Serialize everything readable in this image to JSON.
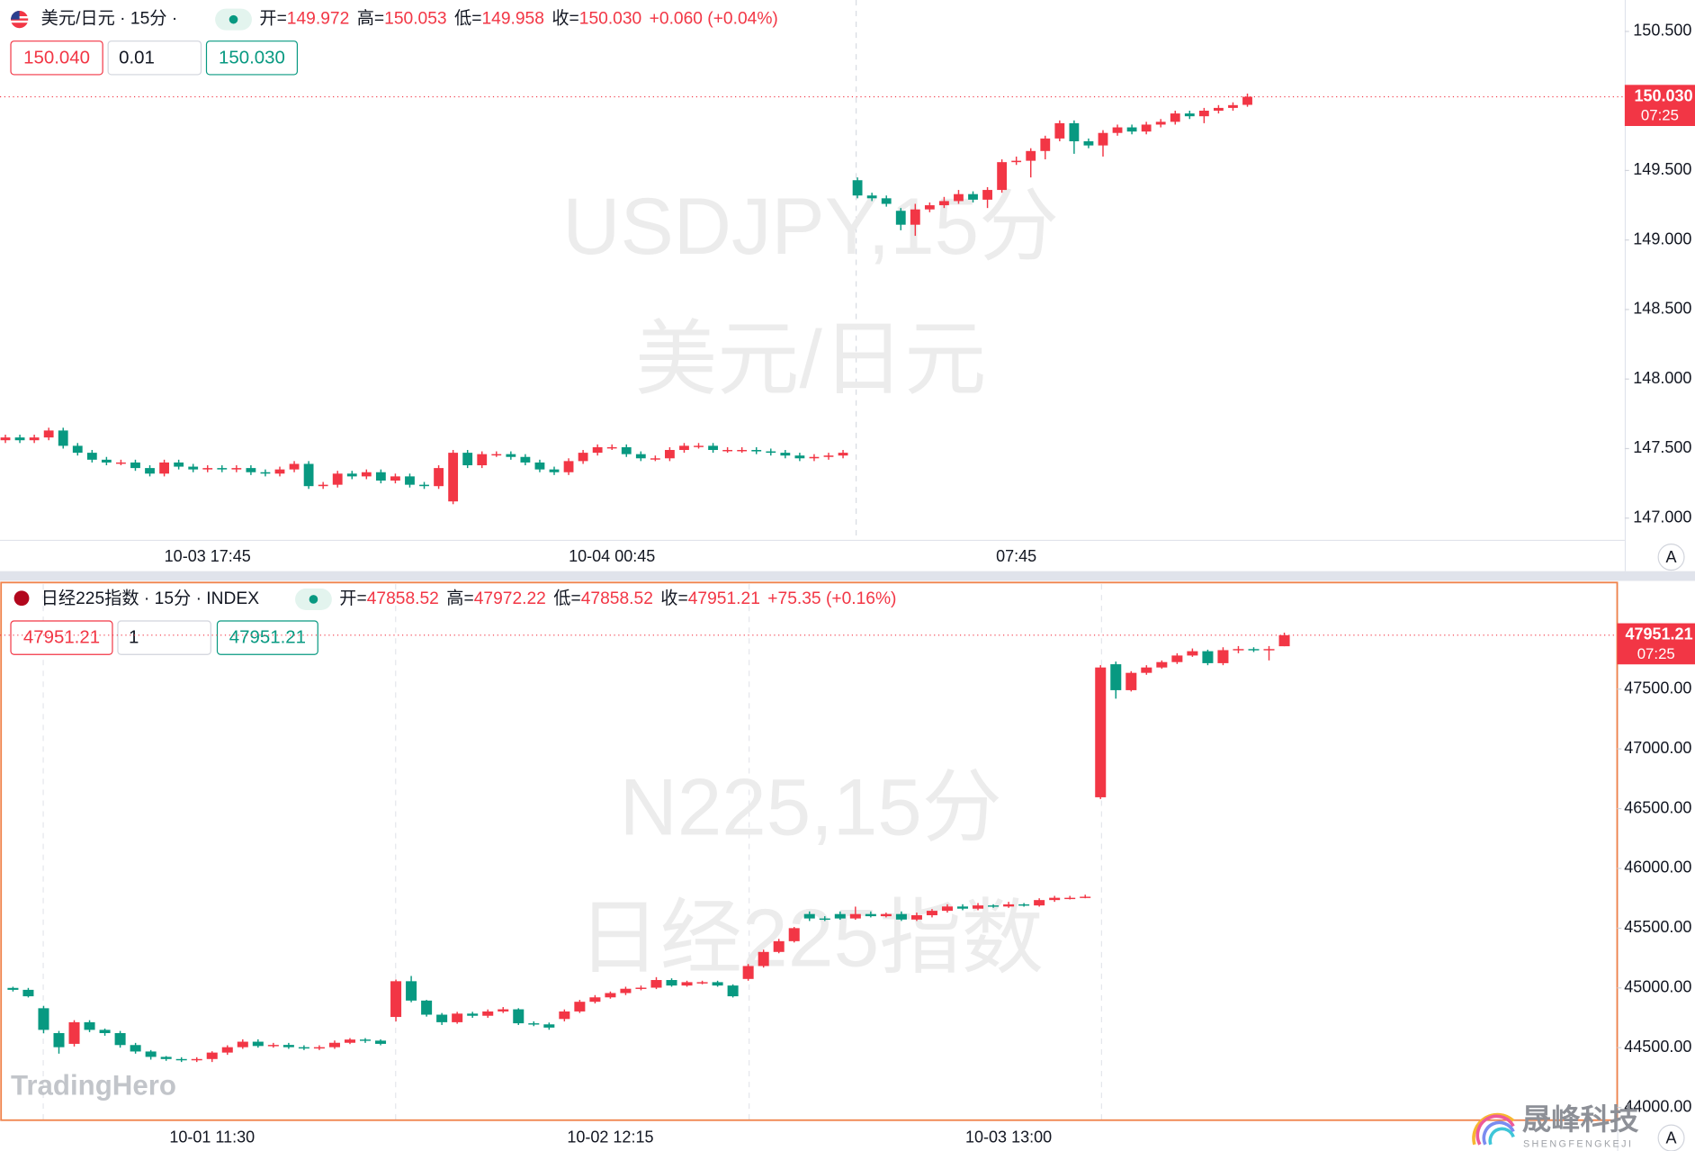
{
  "chart_data": [
    {
      "type": "candlestick",
      "symbol": "美元/日元 · 15分 ·",
      "ohlc_labels": [
        "开=",
        "高=",
        "低=",
        "收="
      ],
      "ohlc_values": [
        "149.972",
        "150.053",
        "149.958",
        "150.030"
      ],
      "change": "+0.060 (+0.04%)",
      "order_boxes": [
        "150.040",
        "0.01",
        "150.030"
      ],
      "watermark": [
        "USDJPY,15分",
        "美元/日元"
      ],
      "up_color": "#f23645",
      "down_color": "#089981",
      "last_price": {
        "value": 150.03,
        "label": "150.030"
      },
      "last_time": "07:25",
      "ylim": [
        146.844,
        150.726
      ],
      "yticks": [
        {
          "value": 150.5,
          "label": "150.500"
        },
        {
          "value": 149.5,
          "label": "149.500"
        },
        {
          "value": 149,
          "label": "149.000"
        },
        {
          "value": 148.5,
          "label": "148.500"
        },
        {
          "value": 148,
          "label": "148.000"
        },
        {
          "value": 147.5,
          "label": "147.500"
        },
        {
          "value": 147,
          "label": "147.000"
        }
      ],
      "categories": [
        null,
        null,
        null,
        null,
        null,
        null,
        null,
        null,
        null,
        null,
        null,
        null,
        null,
        null,
        "10-03 17:45",
        null,
        null,
        null,
        null,
        null,
        null,
        null,
        null,
        null,
        null,
        null,
        null,
        null,
        null,
        null,
        null,
        null,
        null,
        null,
        null,
        null,
        null,
        null,
        null,
        null,
        null,
        null,
        "10-04 00:45",
        null,
        null,
        null,
        null,
        null,
        null,
        null,
        null,
        null,
        null,
        null,
        null,
        null,
        null,
        null,
        null,
        null,
        null,
        null,
        null,
        null,
        null,
        null,
        null,
        null,
        null,
        null,
        "07:45",
        null,
        null,
        null,
        null,
        null,
        null,
        null,
        null,
        null,
        null,
        null,
        null,
        null,
        null,
        null,
        null
      ],
      "open": [
        147.56,
        147.58,
        147.56,
        147.58,
        147.63,
        147.52,
        147.47,
        147.42,
        147.4,
        147.4,
        147.36,
        147.32,
        147.4,
        147.37,
        147.35,
        147.36,
        147.35,
        147.36,
        147.33,
        147.32,
        147.35,
        147.39,
        147.23,
        147.24,
        147.32,
        147.3,
        147.33,
        147.27,
        147.3,
        147.24,
        147.23,
        147.12,
        147.47,
        147.38,
        147.46,
        147.46,
        147.44,
        147.4,
        147.35,
        147.33,
        147.41,
        147.47,
        147.51,
        147.51,
        147.46,
        147.43,
        147.43,
        147.49,
        147.52,
        147.52,
        147.49,
        147.49,
        147.49,
        147.48,
        147.47,
        147.45,
        147.43,
        147.44,
        147.45,
        149.43,
        149.32,
        149.3,
        149.21,
        149.11,
        149.22,
        149.25,
        149.28,
        149.33,
        149.29,
        149.36,
        149.56,
        149.57,
        149.64,
        149.73,
        149.84,
        149.71,
        149.68,
        149.77,
        149.81,
        149.78,
        149.83,
        149.85,
        149.91,
        149.89,
        149.93,
        149.95,
        149.972
      ],
      "high": [
        147.6,
        147.6,
        147.6,
        147.65,
        147.65,
        147.54,
        147.49,
        147.44,
        147.42,
        147.42,
        147.38,
        147.42,
        147.42,
        147.39,
        147.38,
        147.38,
        147.38,
        147.38,
        147.35,
        147.37,
        147.41,
        147.41,
        147.26,
        147.34,
        147.34,
        147.35,
        147.35,
        147.32,
        147.32,
        147.26,
        147.38,
        147.49,
        147.49,
        147.48,
        147.48,
        147.48,
        147.46,
        147.42,
        147.37,
        147.43,
        147.49,
        147.53,
        147.53,
        147.53,
        147.48,
        147.45,
        147.51,
        147.54,
        147.54,
        147.54,
        147.51,
        147.51,
        147.51,
        147.5,
        147.49,
        147.47,
        147.46,
        147.47,
        147.49,
        149.45,
        149.34,
        149.32,
        149.23,
        149.26,
        149.27,
        149.31,
        149.36,
        149.35,
        149.38,
        149.58,
        149.6,
        149.66,
        149.75,
        149.86,
        149.86,
        149.73,
        149.79,
        149.83,
        149.83,
        149.85,
        149.87,
        149.93,
        149.93,
        149.95,
        149.97,
        149.99,
        150.053
      ],
      "low": [
        147.54,
        147.54,
        147.54,
        147.56,
        147.5,
        147.45,
        147.4,
        147.38,
        147.38,
        147.34,
        147.3,
        147.3,
        147.35,
        147.33,
        147.33,
        147.33,
        147.33,
        147.31,
        147.3,
        147.3,
        147.33,
        147.21,
        147.21,
        147.22,
        147.28,
        147.28,
        147.25,
        147.25,
        147.22,
        147.21,
        147.21,
        147.1,
        147.36,
        147.36,
        147.44,
        147.42,
        147.38,
        147.33,
        147.31,
        147.31,
        147.39,
        147.45,
        147.49,
        147.44,
        147.41,
        147.41,
        147.41,
        147.47,
        147.5,
        147.47,
        147.47,
        147.47,
        147.46,
        147.45,
        147.43,
        147.41,
        147.41,
        147.42,
        147.43,
        149.3,
        149.28,
        149.24,
        149.07,
        149.03,
        149.2,
        149.23,
        149.26,
        149.27,
        149.23,
        149.34,
        149.54,
        149.45,
        149.58,
        149.71,
        149.62,
        149.66,
        149.6,
        149.75,
        149.76,
        149.76,
        149.81,
        149.83,
        149.87,
        149.84,
        149.91,
        149.93,
        149.958
      ],
      "close": [
        147.58,
        147.56,
        147.58,
        147.63,
        147.52,
        147.47,
        147.42,
        147.4,
        147.4,
        147.36,
        147.32,
        147.4,
        147.37,
        147.35,
        147.36,
        147.35,
        147.36,
        147.33,
        147.32,
        147.35,
        147.39,
        147.23,
        147.24,
        147.32,
        147.3,
        147.33,
        147.27,
        147.3,
        147.24,
        147.23,
        147.36,
        147.47,
        147.38,
        147.46,
        147.46,
        147.44,
        147.4,
        147.35,
        147.33,
        147.41,
        147.47,
        147.51,
        147.51,
        147.46,
        147.43,
        147.43,
        147.49,
        147.52,
        147.52,
        147.49,
        147.49,
        147.49,
        147.48,
        147.47,
        147.45,
        147.43,
        147.44,
        147.45,
        147.47,
        149.32,
        149.3,
        149.26,
        149.11,
        149.22,
        149.25,
        149.28,
        149.33,
        149.29,
        149.36,
        149.56,
        149.57,
        149.64,
        149.73,
        149.84,
        149.71,
        149.68,
        149.77,
        149.81,
        149.78,
        149.83,
        149.85,
        149.91,
        149.89,
        149.93,
        149.95,
        149.97,
        150.03
      ]
    },
    {
      "type": "candlestick",
      "symbol": "日经225指数 · 15分 · INDEX",
      "ohlc_labels": [
        "开=",
        "高=",
        "低=",
        "收="
      ],
      "ohlc_values": [
        "47858.52",
        "47972.22",
        "47858.52",
        "47951.21"
      ],
      "change": "+75.35 (+0.16%)",
      "order_boxes": [
        "47951.21",
        "1",
        "47951.21"
      ],
      "watermark": [
        "N225,15分",
        "日经225指数"
      ],
      "up_color": "#f23645",
      "down_color": "#089981",
      "last_price": {
        "value": 47951.21,
        "label": "47951.21"
      },
      "last_time": "07:25",
      "ylim": [
        43898,
        48378
      ],
      "yticks": [
        {
          "value": 47500,
          "label": "47500.00"
        },
        {
          "value": 47000,
          "label": "47000.00"
        },
        {
          "value": 46500,
          "label": "46500.00"
        },
        {
          "value": 46000,
          "label": "46000.00"
        },
        {
          "value": 45500,
          "label": "45500.00"
        },
        {
          "value": 45000,
          "label": "45000.00"
        },
        {
          "value": 44500,
          "label": "44500.00"
        },
        {
          "value": 44000,
          "label": "44000.00"
        }
      ],
      "categories": [
        null,
        null,
        null,
        null,
        null,
        null,
        null,
        null,
        null,
        null,
        null,
        null,
        null,
        "10-01 11:30",
        null,
        null,
        null,
        null,
        null,
        null,
        null,
        null,
        null,
        null,
        null,
        null,
        null,
        null,
        null,
        null,
        null,
        null,
        null,
        null,
        null,
        null,
        null,
        null,
        null,
        "10-02 12:15",
        null,
        null,
        null,
        null,
        null,
        null,
        null,
        null,
        null,
        null,
        null,
        null,
        null,
        null,
        null,
        null,
        null,
        null,
        null,
        null,
        null,
        null,
        null,
        null,
        null,
        "10-03 13:00",
        null,
        null,
        null,
        null,
        null,
        null,
        null,
        null,
        null,
        null,
        null,
        null,
        null,
        null,
        null,
        null,
        null,
        null
      ],
      "open": [
        45000,
        44984,
        44830,
        44622,
        44532,
        44713,
        44649,
        44622,
        44522,
        44468,
        44423,
        44405,
        44396,
        44405,
        44459,
        44504,
        44550,
        44514,
        44523,
        44504,
        44495,
        44504,
        44541,
        44568,
        44559,
        44757,
        45056,
        44894,
        44776,
        44713,
        44785,
        44767,
        44803,
        44821,
        44704,
        44695,
        44740,
        44803,
        44884,
        44921,
        44957,
        44993,
        45002,
        45066,
        45020,
        45048,
        45048,
        45020,
        45075,
        45183,
        45301,
        45391,
        45618,
        45581,
        45618,
        45581,
        45618,
        45600,
        45618,
        45572,
        45608,
        45645,
        45681,
        45663,
        45690,
        45681,
        45699,
        45690,
        45735,
        45754,
        45754,
        46595,
        47708,
        47491,
        47636,
        47681,
        47726,
        47781,
        47817,
        47717,
        47826,
        47835,
        47826,
        47858.52
      ],
      "high": [
        45010,
        45000,
        44850,
        44640,
        44730,
        44730,
        44660,
        44640,
        44540,
        44480,
        44430,
        44420,
        44420,
        44470,
        44520,
        44570,
        44570,
        44540,
        44540,
        44520,
        44520,
        44560,
        44580,
        44580,
        44570,
        45070,
        45100,
        44900,
        44790,
        44800,
        44800,
        44820,
        44840,
        44830,
        44720,
        44710,
        44820,
        44900,
        44940,
        44970,
        45010,
        45020,
        45090,
        45080,
        45060,
        45060,
        45060,
        45030,
        45200,
        45320,
        45410,
        45510,
        45640,
        45600,
        45640,
        45680,
        45640,
        45630,
        45640,
        45630,
        45660,
        45700,
        45700,
        45710,
        45700,
        45720,
        45710,
        45750,
        45770,
        45770,
        45780,
        47700,
        47730,
        47650,
        47700,
        47740,
        47800,
        47840,
        47830,
        47850,
        47860,
        47850,
        47860,
        47972.22
      ],
      "low": [
        44970,
        44920,
        44620,
        44450,
        44510,
        44630,
        44600,
        44500,
        44450,
        44400,
        44390,
        44380,
        44380,
        44380,
        44440,
        44490,
        44500,
        44500,
        44490,
        44480,
        44480,
        44490,
        44530,
        44540,
        44520,
        44720,
        44880,
        44760,
        44690,
        44700,
        44750,
        44750,
        44790,
        44690,
        44680,
        44650,
        44720,
        44790,
        44870,
        44910,
        44940,
        44980,
        44990,
        45010,
        45010,
        45030,
        45010,
        44920,
        45060,
        45170,
        45290,
        45380,
        45560,
        45560,
        45570,
        45570,
        45590,
        45590,
        45560,
        45560,
        45590,
        45630,
        45650,
        45650,
        45670,
        45670,
        45680,
        45680,
        45720,
        45740,
        45750,
        46580,
        47420,
        47480,
        47620,
        47670,
        47710,
        47770,
        47700,
        47700,
        47800,
        47810,
        47740,
        47858.52
      ],
      "close": [
        44984,
        44930,
        44649,
        44504,
        44713,
        44649,
        44622,
        44522,
        44468,
        44423,
        44405,
        44396,
        44405,
        44459,
        44504,
        44550,
        44514,
        44523,
        44504,
        44495,
        44504,
        44541,
        44568,
        44559,
        44532,
        45056,
        44894,
        44776,
        44713,
        44785,
        44767,
        44803,
        44821,
        44704,
        44695,
        44668,
        44803,
        44884,
        44921,
        44957,
        44993,
        45002,
        45066,
        45020,
        45048,
        45048,
        45020,
        44930,
        45183,
        45301,
        45391,
        45500,
        45581,
        45572,
        45581,
        45618,
        45600,
        45618,
        45572,
        45608,
        45645,
        45681,
        45663,
        45690,
        45681,
        45699,
        45690,
        45735,
        45754,
        45754,
        45763,
        47681,
        47491,
        47636,
        47681,
        47726,
        47781,
        47817,
        47717,
        47826,
        47835,
        47826,
        47835,
        47951.21
      ]
    }
  ],
  "axis_button": "A",
  "branding": {
    "left": "TradingHero",
    "right": "晟峰科技",
    "right_sub": "SHENGFENGKEJI"
  }
}
